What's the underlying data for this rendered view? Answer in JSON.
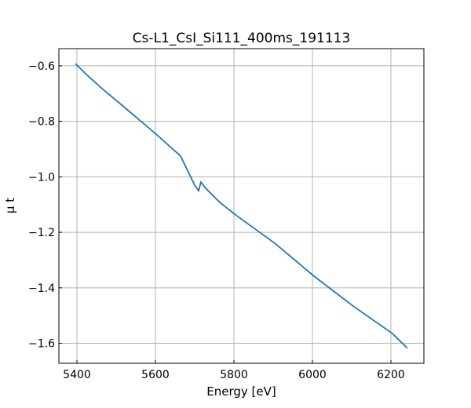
{
  "chart_data": {
    "type": "line",
    "title": "Cs-L1_CsI_Si111_400ms_191113",
    "xlabel": "Energy [eV]",
    "ylabel": "μ t",
    "xlim": [
      5354,
      6284
    ],
    "ylim": [
      -1.672,
      -0.538
    ],
    "xticks": [
      5400,
      5600,
      5800,
      6000,
      6200
    ],
    "yticks": [
      -0.6,
      -0.8,
      -1.0,
      -1.2,
      -1.4,
      -1.6
    ],
    "xtick_labels": [
      "5400",
      "5600",
      "5800",
      "6000",
      "6200"
    ],
    "ytick_labels": [
      "−0.6",
      "−0.8",
      "−1.0",
      "−1.2",
      "−1.4",
      "−1.6"
    ],
    "grid": true,
    "line_color": "#1f77b4",
    "x": [
      5396,
      5424,
      5464,
      5524,
      5604,
      5664,
      5700,
      5710,
      5716,
      5728,
      5744,
      5764,
      5804,
      5904,
      6004,
      6104,
      6204,
      6242
    ],
    "y": [
      -0.592,
      -0.631,
      -0.682,
      -0.753,
      -0.849,
      -0.925,
      -1.03,
      -1.05,
      -1.019,
      -1.041,
      -1.064,
      -1.092,
      -1.137,
      -1.239,
      -1.358,
      -1.466,
      -1.565,
      -1.618
    ]
  }
}
